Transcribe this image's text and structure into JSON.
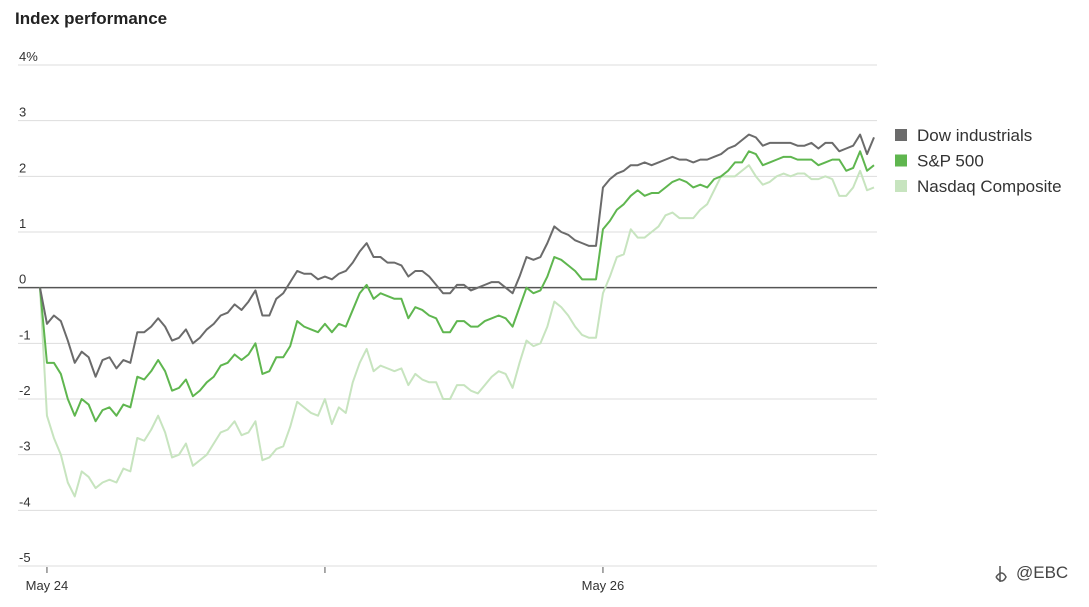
{
  "chart_data": {
    "type": "line",
    "title": "Index performance",
    "x": [
      0,
      1,
      2,
      3,
      4,
      5,
      6,
      7,
      8,
      9,
      10,
      11,
      12,
      13,
      14,
      15,
      16,
      17,
      18,
      19,
      20,
      21,
      22,
      23,
      24,
      25,
      26,
      27,
      28,
      29,
      30,
      31,
      32,
      33,
      34,
      35,
      36,
      37,
      38,
      39,
      40,
      41,
      42,
      43,
      44,
      45,
      46,
      47,
      48,
      49,
      50,
      51,
      52,
      53,
      54,
      55,
      56,
      57,
      58,
      59,
      60,
      61,
      62,
      63,
      64,
      65,
      66,
      67,
      68,
      69,
      70,
      71,
      72,
      73,
      74,
      75,
      76,
      77,
      78,
      79,
      80,
      81,
      82,
      83,
      84,
      85,
      86,
      87,
      88,
      89,
      90,
      91,
      92,
      93,
      94,
      95,
      96,
      97,
      98,
      99,
      100,
      101,
      102,
      103,
      104,
      105,
      106,
      107,
      108,
      109,
      110,
      111,
      112,
      113,
      114,
      115,
      116,
      117,
      118,
      119,
      120
    ],
    "series": [
      {
        "name": "Dow industrials",
        "color": "#6b6b6b",
        "values": [
          0,
          -0.65,
          -0.5,
          -0.6,
          -0.95,
          -1.35,
          -1.15,
          -1.25,
          -1.6,
          -1.3,
          -1.25,
          -1.45,
          -1.3,
          -1.35,
          -0.8,
          -0.8,
          -0.7,
          -0.55,
          -0.7,
          -0.95,
          -0.9,
          -0.75,
          -1.0,
          -0.9,
          -0.75,
          -0.65,
          -0.5,
          -0.45,
          -0.3,
          -0.4,
          -0.25,
          -0.05,
          -0.5,
          -0.5,
          -0.2,
          -0.1,
          0.1,
          0.3,
          0.25,
          0.25,
          0.15,
          0.2,
          0.15,
          0.25,
          0.3,
          0.45,
          0.65,
          0.8,
          0.55,
          0.55,
          0.45,
          0.45,
          0.4,
          0.2,
          0.3,
          0.3,
          0.2,
          0.05,
          -0.1,
          -0.1,
          0.05,
          0.05,
          -0.05,
          0,
          0.05,
          0.1,
          0.1,
          0,
          -0.1,
          0.2,
          0.55,
          0.5,
          0.55,
          0.8,
          1.1,
          1.0,
          0.95,
          0.85,
          0.8,
          0.75,
          0.75,
          1.8,
          1.95,
          2.05,
          2.1,
          2.2,
          2.2,
          2.25,
          2.2,
          2.25,
          2.3,
          2.35,
          2.3,
          2.3,
          2.25,
          2.3,
          2.3,
          2.35,
          2.4,
          2.5,
          2.55,
          2.65,
          2.75,
          2.7,
          2.55,
          2.6,
          2.6,
          2.6,
          2.6,
          2.55,
          2.55,
          2.6,
          2.5,
          2.6,
          2.6,
          2.45,
          2.5,
          2.55,
          2.75,
          2.4,
          2.7
        ]
      },
      {
        "name": "S&P 500",
        "color": "#5fb64f",
        "values": [
          0,
          -1.35,
          -1.35,
          -1.55,
          -2.0,
          -2.3,
          -2.0,
          -2.1,
          -2.4,
          -2.2,
          -2.15,
          -2.3,
          -2.1,
          -2.15,
          -1.6,
          -1.65,
          -1.5,
          -1.3,
          -1.5,
          -1.85,
          -1.8,
          -1.65,
          -1.95,
          -1.85,
          -1.7,
          -1.6,
          -1.4,
          -1.35,
          -1.2,
          -1.3,
          -1.2,
          -1.0,
          -1.55,
          -1.5,
          -1.25,
          -1.25,
          -1.05,
          -0.6,
          -0.7,
          -0.75,
          -0.8,
          -0.65,
          -0.8,
          -0.65,
          -0.7,
          -0.4,
          -0.1,
          0.05,
          -0.2,
          -0.1,
          -0.15,
          -0.2,
          -0.2,
          -0.55,
          -0.35,
          -0.4,
          -0.5,
          -0.55,
          -0.8,
          -0.8,
          -0.6,
          -0.6,
          -0.7,
          -0.7,
          -0.6,
          -0.55,
          -0.5,
          -0.55,
          -0.7,
          -0.35,
          0.0,
          -0.1,
          -0.05,
          0.2,
          0.55,
          0.5,
          0.4,
          0.3,
          0.15,
          0.15,
          0.15,
          1.05,
          1.2,
          1.4,
          1.5,
          1.65,
          1.75,
          1.65,
          1.7,
          1.7,
          1.8,
          1.9,
          1.95,
          1.9,
          1.8,
          1.85,
          1.8,
          1.95,
          2.0,
          2.1,
          2.25,
          2.25,
          2.45,
          2.4,
          2.2,
          2.25,
          2.3,
          2.35,
          2.35,
          2.3,
          2.3,
          2.3,
          2.2,
          2.25,
          2.3,
          2.3,
          2.1,
          2.15,
          2.45,
          2.1,
          2.2
        ]
      },
      {
        "name": "Nasdaq Composite",
        "color": "#c7e4bf",
        "values": [
          0,
          -2.3,
          -2.7,
          -3.0,
          -3.5,
          -3.75,
          -3.3,
          -3.4,
          -3.6,
          -3.5,
          -3.45,
          -3.5,
          -3.25,
          -3.3,
          -2.7,
          -2.75,
          -2.55,
          -2.3,
          -2.6,
          -3.05,
          -3.0,
          -2.8,
          -3.2,
          -3.1,
          -3.0,
          -2.8,
          -2.6,
          -2.55,
          -2.4,
          -2.65,
          -2.6,
          -2.4,
          -3.1,
          -3.05,
          -2.9,
          -2.85,
          -2.5,
          -2.05,
          -2.15,
          -2.25,
          -2.3,
          -2.0,
          -2.45,
          -2.15,
          -2.25,
          -1.7,
          -1.35,
          -1.1,
          -1.5,
          -1.4,
          -1.45,
          -1.5,
          -1.45,
          -1.75,
          -1.55,
          -1.65,
          -1.7,
          -1.7,
          -2.0,
          -2.0,
          -1.75,
          -1.75,
          -1.85,
          -1.9,
          -1.75,
          -1.6,
          -1.5,
          -1.55,
          -1.8,
          -1.35,
          -0.95,
          -1.05,
          -1.0,
          -0.7,
          -0.25,
          -0.35,
          -0.5,
          -0.7,
          -0.85,
          -0.9,
          -0.9,
          -0.1,
          0.2,
          0.55,
          0.6,
          1.05,
          0.9,
          0.9,
          1.0,
          1.1,
          1.3,
          1.35,
          1.25,
          1.25,
          1.25,
          1.4,
          1.5,
          1.75,
          2.0,
          2.0,
          2.0,
          2.1,
          2.2,
          2.0,
          1.85,
          1.9,
          2.0,
          2.05,
          2.0,
          2.05,
          2.05,
          1.95,
          1.95,
          2.0,
          1.95,
          1.65,
          1.65,
          1.8,
          2.1,
          1.75,
          1.8
        ]
      }
    ],
    "xlim": [
      0,
      120
    ],
    "xticks": [
      {
        "value": 1,
        "label": "May 24"
      },
      {
        "value": 41,
        "label": null
      },
      {
        "value": 81,
        "label": "May 26"
      }
    ],
    "ylim": [
      -5,
      4
    ],
    "yticks": [
      {
        "value": 4,
        "label": "4%"
      },
      3,
      2,
      1,
      0,
      -1,
      -2,
      -3,
      -4,
      -5
    ],
    "grid": true,
    "legend": "right"
  },
  "watermark": "@EBC"
}
